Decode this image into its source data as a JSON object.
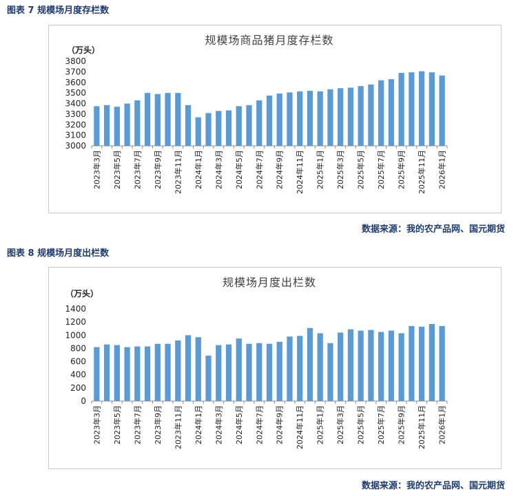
{
  "figures": [
    {
      "caption": "图表 7  规模场月度存栏数",
      "source": "数据来源：我的农产品网、国元期货"
    },
    {
      "caption": "图表 8  规模场月度出栏数",
      "source": "数据来源：我的农产品网、国元期货"
    }
  ],
  "chart_data": [
    {
      "type": "bar",
      "title": "规模场商品猪月度存栏数",
      "unit_label": "（万头）",
      "ylim": [
        3000,
        3800
      ],
      "yticks": [
        3000,
        3100,
        3200,
        3300,
        3400,
        3500,
        3600,
        3700,
        3800
      ],
      "categories": [
        "2023年3月",
        "2023年4月",
        "2023年5月",
        "2023年6月",
        "2023年7月",
        "2023年8月",
        "2023年9月",
        "2023年10月",
        "2023年11月",
        "2023年12月",
        "2024年1月",
        "2024年2月",
        "2024年3月",
        "2024年4月",
        "2024年5月",
        "2024年6月",
        "2024年7月",
        "2024年8月",
        "2024年9月",
        "2024年10月",
        "2024年11月",
        "2024年12月",
        "2025年1月",
        "2025年2月",
        "2025年3月",
        "2025年4月",
        "2025年5月",
        "2025年6月",
        "2025年7月",
        "2025年8月",
        "2025年9月",
        "2025年10月",
        "2025年11月",
        "2025年12月",
        "2026年1月"
      ],
      "xtick_labels": [
        "2023年3月",
        "2023年5月",
        "2023年7月",
        "2023年9月",
        "2023年11月",
        "2024年1月",
        "2024年3月",
        "2024年5月",
        "2024年7月",
        "2024年9月",
        "2024年11月",
        "2025年1月",
        "2025年3月",
        "2025年5月",
        "2025年7月",
        "2025年9月",
        "2025年11月",
        "2026年1月"
      ],
      "values": [
        3375,
        3385,
        3370,
        3400,
        3430,
        3500,
        3490,
        3500,
        3500,
        3385,
        3270,
        3310,
        3330,
        3335,
        3375,
        3385,
        3430,
        3475,
        3495,
        3505,
        3515,
        3520,
        3515,
        3535,
        3545,
        3550,
        3565,
        3580,
        3620,
        3630,
        3690,
        3695,
        3705,
        3695,
        3665
      ],
      "grid": false
    },
    {
      "type": "bar",
      "title": "规模场月度出栏数",
      "unit_label": "（万头）",
      "ylim": [
        0,
        1400
      ],
      "yticks": [
        0,
        200,
        400,
        600,
        800,
        1000,
        1200,
        1400
      ],
      "categories": [
        "2023年3月",
        "2023年4月",
        "2023年5月",
        "2023年6月",
        "2023年7月",
        "2023年8月",
        "2023年9月",
        "2023年10月",
        "2023年11月",
        "2023年12月",
        "2024年1月",
        "2024年2月",
        "2024年3月",
        "2024年4月",
        "2024年5月",
        "2024年6月",
        "2024年7月",
        "2024年8月",
        "2024年9月",
        "2024年10月",
        "2024年11月",
        "2024年12月",
        "2025年1月",
        "2025年2月",
        "2025年3月",
        "2025年4月",
        "2025年5月",
        "2025年6月",
        "2025年7月",
        "2025年8月",
        "2025年9月",
        "2025年10月",
        "2025年11月",
        "2025年12月",
        "2026年1月"
      ],
      "xtick_labels": [
        "2023年3月",
        "2023年5月",
        "2023年7月",
        "2023年9月",
        "2023年11月",
        "2024年1月",
        "2024年3月",
        "2024年5月",
        "2024年7月",
        "2024年9月",
        "2024年11月",
        "2025年1月",
        "2025年3月",
        "2025年5月",
        "2025年7月",
        "2025年9月",
        "2025年11月",
        "2026年1月"
      ],
      "values": [
        820,
        860,
        850,
        820,
        830,
        830,
        870,
        870,
        920,
        1000,
        970,
        690,
        850,
        860,
        950,
        870,
        880,
        870,
        900,
        980,
        990,
        1110,
        1030,
        880,
        1040,
        1090,
        1070,
        1080,
        1050,
        1070,
        1030,
        1140,
        1130,
        1170,
        1140
      ],
      "grid": false
    }
  ]
}
